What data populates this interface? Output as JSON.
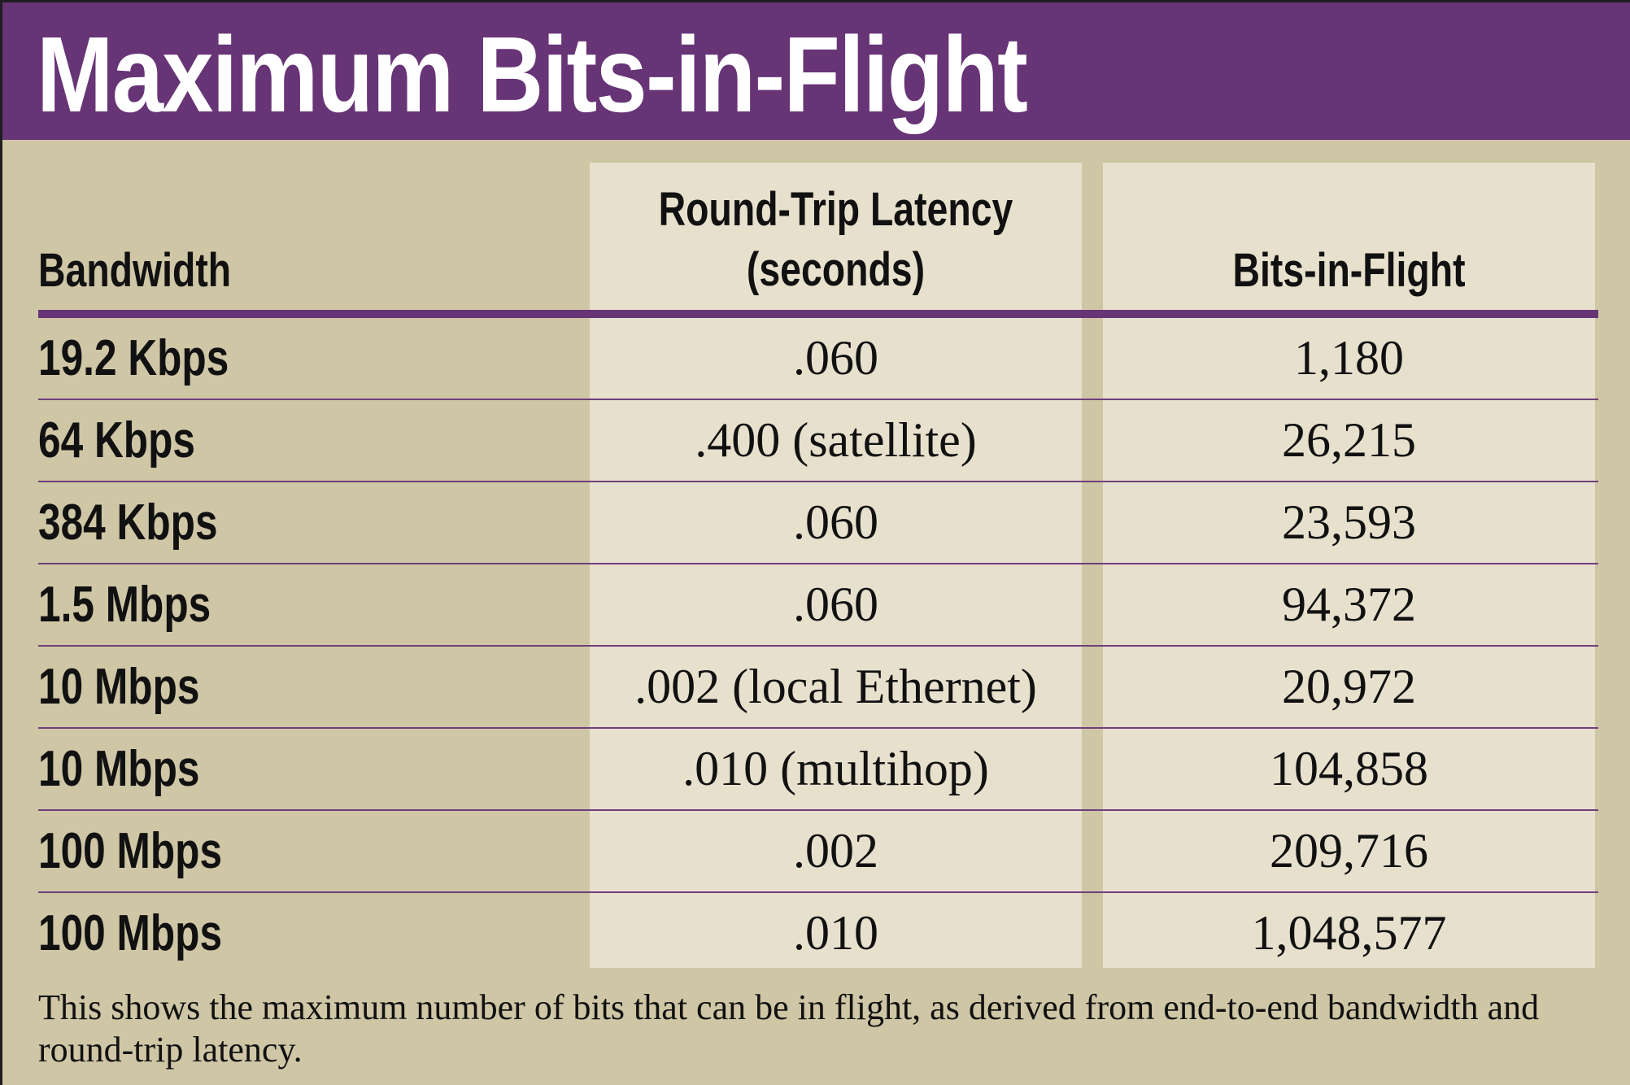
{
  "title": "Maximum Bits-in-Flight",
  "chart_data": {
    "type": "table",
    "columns": [
      "Bandwidth",
      "Round-Trip Latency (seconds)",
      "Bits-in-Flight"
    ],
    "headers": {
      "bandwidth": "Bandwidth",
      "latency_line1": "Round-Trip Latency",
      "latency_line2": "(seconds)",
      "bits": "Bits-in-Flight"
    },
    "rows": [
      {
        "bandwidth": "19.2 Kbps",
        "latency": ".060",
        "bits": "1,180"
      },
      {
        "bandwidth": "64 Kbps",
        "latency": ".400 (satellite)",
        "bits": "26,215"
      },
      {
        "bandwidth": "384 Kbps",
        "latency": ".060",
        "bits": "23,593"
      },
      {
        "bandwidth": "1.5 Mbps",
        "latency": ".060",
        "bits": "94,372"
      },
      {
        "bandwidth": "10 Mbps",
        "latency": ".002 (local Ethernet)",
        "bits": "20,972"
      },
      {
        "bandwidth": "10 Mbps",
        "latency": ".010 (multihop)",
        "bits": "104,858"
      },
      {
        "bandwidth": "100 Mbps",
        "latency": ".002",
        "bits": "209,716"
      },
      {
        "bandwidth": "100 Mbps",
        "latency": ".010",
        "bits": "1,048,577"
      }
    ]
  },
  "caption": "This shows the maximum number of bits that can be in flight, as derived from end-to-end bandwidth and round-trip latency.",
  "colors": {
    "accent": "#673476",
    "background": "#cfc6a6",
    "column_fill": "#e7e0cd"
  }
}
